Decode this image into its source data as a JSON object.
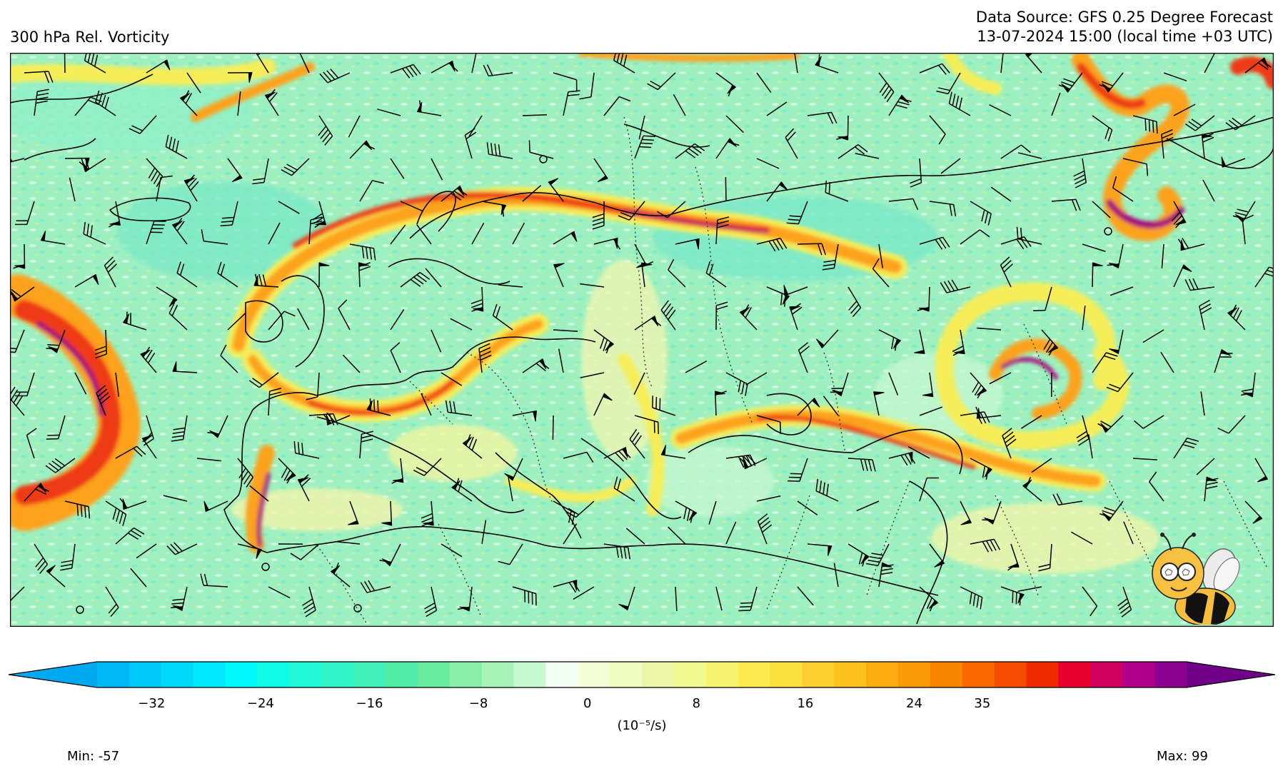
{
  "header": {
    "field_title": "300 hPa Rel. Vorticity",
    "source": "Data Source: GFS 0.25 Degree Forecast",
    "valid_time": "13-07-2024 15:00 (local time +03 UTC)"
  },
  "colorbar": {
    "ticks": [
      "−32",
      "−24",
      "−16",
      "−8",
      "0",
      "8",
      "16",
      "24",
      "35"
    ],
    "unit": "(10⁻⁵/s)",
    "range": [
      -36,
      44
    ],
    "colors": [
      "#00a8f0",
      "#00b8f5",
      "#00c8f8",
      "#00d8fa",
      "#00e8fc",
      "#00f8fa",
      "#10fae8",
      "#20f8d8",
      "#30f4c8",
      "#40f0b8",
      "#50eca8",
      "#68eca0",
      "#88f0a8",
      "#a8f4b8",
      "#c8f8d0",
      "#f4fff4",
      "#f4ffd8",
      "#f0fcc0",
      "#ecf8a8",
      "#f0f890",
      "#f8f470",
      "#fcec50",
      "#fce040",
      "#fcd030",
      "#fcc020",
      "#fcac10",
      "#fa9a08",
      "#f88400",
      "#f86a00",
      "#f44c00",
      "#f02a00",
      "#e80030",
      "#d00060",
      "#b0008a",
      "#8c0090",
      "#700088"
    ]
  },
  "stats": {
    "min": "Min: -57",
    "max": "Max: 99"
  },
  "map": {
    "background": "#9ff0c0",
    "jet_colors": [
      "#f6ee58",
      "#fca21c",
      "#ee3a12",
      "#a60078"
    ]
  }
}
